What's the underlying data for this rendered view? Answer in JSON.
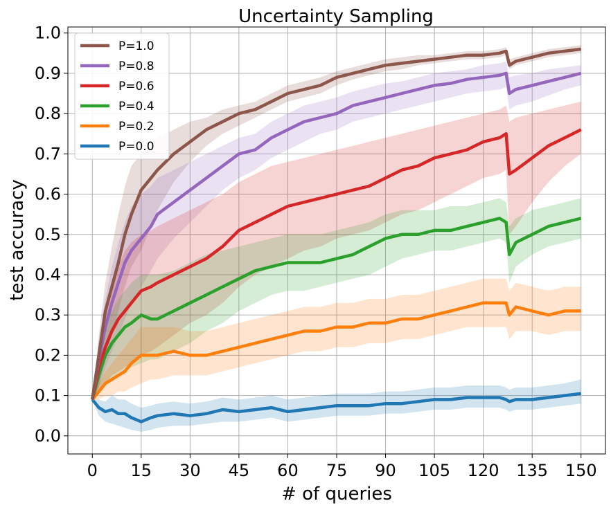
{
  "chart_data": {
    "type": "line",
    "title": "Uncertainty Sampling",
    "xlabel": "# of queries",
    "ylabel": "test accuracy",
    "xlim": [
      -7.5,
      157.5
    ],
    "ylim": [
      -0.045,
      1.015
    ],
    "xticks": [
      0,
      15,
      30,
      45,
      60,
      75,
      90,
      105,
      120,
      135,
      150
    ],
    "yticks": [
      0.0,
      0.1,
      0.2,
      0.3,
      0.4,
      0.5,
      0.6,
      0.7,
      0.8,
      0.9,
      1.0
    ],
    "ytick_labels": [
      "0.0",
      "0.1",
      "0.2",
      "0.3",
      "0.4",
      "0.5",
      "0.6",
      "0.7",
      "0.8",
      "0.9",
      "1.0"
    ],
    "grid": true,
    "legend_position": "top-left",
    "shaded_band": "uncertainty range around each series",
    "series": [
      {
        "name": "P=1.0",
        "color": "#8c564b",
        "x": [
          0,
          2,
          4,
          6,
          8,
          10,
          12,
          15,
          18,
          20,
          25,
          30,
          35,
          40,
          45,
          50,
          55,
          60,
          65,
          70,
          75,
          80,
          85,
          90,
          95,
          100,
          105,
          110,
          115,
          120,
          125,
          127,
          128,
          130,
          135,
          140,
          145,
          150
        ],
        "y": [
          0.09,
          0.2,
          0.31,
          0.37,
          0.43,
          0.5,
          0.55,
          0.61,
          0.64,
          0.66,
          0.7,
          0.73,
          0.76,
          0.78,
          0.8,
          0.81,
          0.83,
          0.85,
          0.86,
          0.87,
          0.89,
          0.9,
          0.91,
          0.92,
          0.925,
          0.93,
          0.935,
          0.94,
          0.945,
          0.945,
          0.95,
          0.955,
          0.92,
          0.93,
          0.94,
          0.95,
          0.955,
          0.96
        ],
        "band_lower": [
          0.09,
          0.12,
          0.2,
          0.25,
          0.31,
          0.37,
          0.42,
          0.46,
          0.52,
          0.56,
          0.63,
          0.68,
          0.72,
          0.75,
          0.77,
          0.79,
          0.81,
          0.83,
          0.84,
          0.85,
          0.87,
          0.885,
          0.895,
          0.905,
          0.91,
          0.92,
          0.925,
          0.93,
          0.935,
          0.935,
          0.94,
          0.945,
          0.91,
          0.92,
          0.93,
          0.94,
          0.945,
          0.95
        ],
        "band_upper": [
          0.09,
          0.25,
          0.38,
          0.47,
          0.55,
          0.62,
          0.67,
          0.7,
          0.72,
          0.74,
          0.76,
          0.78,
          0.79,
          0.81,
          0.82,
          0.83,
          0.85,
          0.87,
          0.88,
          0.89,
          0.905,
          0.915,
          0.925,
          0.935,
          0.94,
          0.945,
          0.945,
          0.95,
          0.955,
          0.955,
          0.96,
          0.965,
          0.935,
          0.94,
          0.95,
          0.96,
          0.965,
          0.97
        ]
      },
      {
        "name": "P=0.8",
        "color": "#9467bd",
        "x": [
          0,
          2,
          4,
          6,
          8,
          10,
          12,
          15,
          18,
          20,
          25,
          30,
          35,
          40,
          45,
          50,
          55,
          60,
          65,
          70,
          75,
          80,
          85,
          90,
          95,
          100,
          105,
          110,
          115,
          120,
          125,
          127,
          128,
          130,
          135,
          140,
          145,
          150
        ],
        "y": [
          0.09,
          0.19,
          0.27,
          0.33,
          0.38,
          0.43,
          0.46,
          0.49,
          0.52,
          0.55,
          0.58,
          0.61,
          0.64,
          0.67,
          0.7,
          0.71,
          0.74,
          0.76,
          0.78,
          0.79,
          0.8,
          0.82,
          0.83,
          0.84,
          0.85,
          0.86,
          0.87,
          0.875,
          0.885,
          0.89,
          0.895,
          0.9,
          0.85,
          0.86,
          0.87,
          0.88,
          0.89,
          0.9
        ],
        "band_lower": [
          0.09,
          0.12,
          0.17,
          0.21,
          0.25,
          0.29,
          0.33,
          0.37,
          0.41,
          0.44,
          0.49,
          0.53,
          0.57,
          0.61,
          0.64,
          0.66,
          0.69,
          0.71,
          0.73,
          0.75,
          0.76,
          0.78,
          0.79,
          0.8,
          0.81,
          0.82,
          0.83,
          0.84,
          0.85,
          0.855,
          0.86,
          0.865,
          0.81,
          0.82,
          0.83,
          0.845,
          0.86,
          0.87
        ],
        "band_upper": [
          0.09,
          0.24,
          0.34,
          0.42,
          0.48,
          0.53,
          0.57,
          0.6,
          0.62,
          0.64,
          0.66,
          0.68,
          0.7,
          0.72,
          0.74,
          0.75,
          0.78,
          0.8,
          0.82,
          0.83,
          0.84,
          0.855,
          0.865,
          0.875,
          0.88,
          0.89,
          0.9,
          0.905,
          0.91,
          0.92,
          0.925,
          0.93,
          0.89,
          0.895,
          0.9,
          0.91,
          0.915,
          0.92
        ]
      },
      {
        "name": "P=0.6",
        "color": "#d62728",
        "x": [
          0,
          2,
          4,
          6,
          8,
          10,
          12,
          15,
          18,
          20,
          25,
          30,
          35,
          40,
          45,
          50,
          55,
          60,
          65,
          70,
          75,
          80,
          85,
          90,
          95,
          100,
          105,
          110,
          115,
          120,
          125,
          127,
          128,
          130,
          135,
          140,
          145,
          150
        ],
        "y": [
          0.09,
          0.17,
          0.22,
          0.26,
          0.29,
          0.31,
          0.33,
          0.36,
          0.37,
          0.38,
          0.4,
          0.42,
          0.44,
          0.47,
          0.51,
          0.53,
          0.55,
          0.57,
          0.58,
          0.59,
          0.6,
          0.61,
          0.62,
          0.64,
          0.66,
          0.67,
          0.69,
          0.7,
          0.71,
          0.73,
          0.74,
          0.75,
          0.65,
          0.66,
          0.69,
          0.72,
          0.74,
          0.76
        ],
        "band_lower": [
          0.09,
          0.11,
          0.13,
          0.15,
          0.16,
          0.17,
          0.18,
          0.2,
          0.21,
          0.22,
          0.25,
          0.28,
          0.3,
          0.33,
          0.37,
          0.4,
          0.42,
          0.44,
          0.46,
          0.47,
          0.49,
          0.5,
          0.51,
          0.53,
          0.55,
          0.56,
          0.58,
          0.6,
          0.62,
          0.64,
          0.65,
          0.66,
          0.5,
          0.52,
          0.58,
          0.63,
          0.67,
          0.7
        ],
        "band_upper": [
          0.09,
          0.23,
          0.31,
          0.37,
          0.42,
          0.46,
          0.48,
          0.5,
          0.51,
          0.52,
          0.54,
          0.56,
          0.58,
          0.6,
          0.63,
          0.65,
          0.67,
          0.68,
          0.69,
          0.7,
          0.71,
          0.72,
          0.73,
          0.74,
          0.75,
          0.76,
          0.77,
          0.78,
          0.79,
          0.8,
          0.81,
          0.82,
          0.78,
          0.79,
          0.8,
          0.81,
          0.82,
          0.83
        ]
      },
      {
        "name": "P=0.4",
        "color": "#2ca02c",
        "x": [
          0,
          2,
          4,
          6,
          8,
          10,
          12,
          15,
          18,
          20,
          25,
          30,
          35,
          40,
          45,
          50,
          55,
          60,
          65,
          70,
          75,
          80,
          85,
          90,
          95,
          100,
          105,
          110,
          115,
          120,
          125,
          127,
          128,
          130,
          135,
          140,
          145,
          150
        ],
        "y": [
          0.09,
          0.15,
          0.2,
          0.23,
          0.25,
          0.27,
          0.28,
          0.3,
          0.29,
          0.29,
          0.31,
          0.33,
          0.35,
          0.37,
          0.39,
          0.41,
          0.42,
          0.43,
          0.43,
          0.43,
          0.44,
          0.45,
          0.47,
          0.49,
          0.5,
          0.5,
          0.51,
          0.51,
          0.52,
          0.53,
          0.54,
          0.53,
          0.45,
          0.48,
          0.5,
          0.52,
          0.53,
          0.54
        ],
        "band_lower": [
          0.09,
          0.11,
          0.13,
          0.14,
          0.15,
          0.16,
          0.17,
          0.18,
          0.19,
          0.19,
          0.21,
          0.23,
          0.26,
          0.28,
          0.31,
          0.33,
          0.35,
          0.36,
          0.36,
          0.37,
          0.38,
          0.39,
          0.4,
          0.42,
          0.44,
          0.45,
          0.46,
          0.46,
          0.47,
          0.48,
          0.49,
          0.48,
          0.38,
          0.42,
          0.45,
          0.47,
          0.48,
          0.49
        ],
        "band_upper": [
          0.09,
          0.2,
          0.27,
          0.31,
          0.34,
          0.36,
          0.38,
          0.4,
          0.4,
          0.4,
          0.41,
          0.43,
          0.45,
          0.46,
          0.47,
          0.48,
          0.49,
          0.5,
          0.5,
          0.5,
          0.51,
          0.52,
          0.53,
          0.55,
          0.56,
          0.56,
          0.56,
          0.57,
          0.57,
          0.58,
          0.59,
          0.58,
          0.52,
          0.54,
          0.56,
          0.57,
          0.58,
          0.59
        ]
      },
      {
        "name": "P=0.2",
        "color": "#ff7f0e",
        "x": [
          0,
          2,
          4,
          6,
          8,
          10,
          12,
          15,
          18,
          20,
          25,
          30,
          35,
          40,
          45,
          50,
          55,
          60,
          65,
          70,
          75,
          80,
          85,
          90,
          95,
          100,
          105,
          110,
          115,
          120,
          125,
          127,
          128,
          130,
          135,
          140,
          145,
          150
        ],
        "y": [
          0.09,
          0.11,
          0.13,
          0.14,
          0.15,
          0.16,
          0.18,
          0.2,
          0.2,
          0.2,
          0.21,
          0.2,
          0.2,
          0.21,
          0.22,
          0.23,
          0.24,
          0.25,
          0.26,
          0.26,
          0.27,
          0.27,
          0.28,
          0.28,
          0.29,
          0.29,
          0.3,
          0.31,
          0.32,
          0.33,
          0.33,
          0.33,
          0.3,
          0.32,
          0.31,
          0.3,
          0.31,
          0.31
        ],
        "band_lower": [
          0.09,
          0.09,
          0.1,
          0.1,
          0.11,
          0.11,
          0.12,
          0.13,
          0.14,
          0.14,
          0.15,
          0.15,
          0.15,
          0.16,
          0.17,
          0.18,
          0.19,
          0.2,
          0.21,
          0.21,
          0.22,
          0.22,
          0.23,
          0.23,
          0.24,
          0.24,
          0.25,
          0.26,
          0.27,
          0.27,
          0.27,
          0.27,
          0.24,
          0.26,
          0.26,
          0.25,
          0.26,
          0.26
        ],
        "band_upper": [
          0.09,
          0.13,
          0.16,
          0.18,
          0.2,
          0.22,
          0.24,
          0.27,
          0.27,
          0.27,
          0.27,
          0.26,
          0.26,
          0.27,
          0.28,
          0.29,
          0.3,
          0.31,
          0.32,
          0.32,
          0.33,
          0.33,
          0.34,
          0.34,
          0.35,
          0.35,
          0.36,
          0.37,
          0.38,
          0.39,
          0.39,
          0.39,
          0.36,
          0.38,
          0.37,
          0.36,
          0.37,
          0.37
        ]
      },
      {
        "name": "P=0.0",
        "color": "#1f77b4",
        "x": [
          0,
          2,
          4,
          6,
          8,
          10,
          12,
          15,
          18,
          20,
          25,
          30,
          35,
          40,
          45,
          50,
          55,
          60,
          65,
          70,
          75,
          80,
          85,
          90,
          95,
          100,
          105,
          110,
          115,
          120,
          125,
          127,
          128,
          130,
          135,
          140,
          145,
          150
        ],
        "y": [
          0.09,
          0.07,
          0.06,
          0.065,
          0.055,
          0.055,
          0.045,
          0.035,
          0.045,
          0.05,
          0.055,
          0.05,
          0.055,
          0.065,
          0.06,
          0.065,
          0.07,
          0.06,
          0.065,
          0.07,
          0.075,
          0.075,
          0.075,
          0.08,
          0.08,
          0.085,
          0.09,
          0.09,
          0.095,
          0.095,
          0.095,
          0.09,
          0.085,
          0.09,
          0.09,
          0.095,
          0.1,
          0.105
        ],
        "band_lower": [
          0.09,
          0.05,
          0.035,
          0.03,
          0.025,
          0.02,
          0.015,
          0.01,
          0.015,
          0.02,
          0.025,
          0.025,
          0.03,
          0.035,
          0.035,
          0.04,
          0.045,
          0.035,
          0.04,
          0.045,
          0.05,
          0.05,
          0.05,
          0.055,
          0.055,
          0.06,
          0.065,
          0.065,
          0.07,
          0.07,
          0.07,
          0.065,
          0.06,
          0.065,
          0.065,
          0.07,
          0.075,
          0.08
        ],
        "band_upper": [
          0.09,
          0.09,
          0.085,
          0.1,
          0.09,
          0.09,
          0.08,
          0.07,
          0.075,
          0.08,
          0.085,
          0.08,
          0.085,
          0.095,
          0.09,
          0.095,
          0.1,
          0.09,
          0.095,
          0.1,
          0.105,
          0.105,
          0.105,
          0.11,
          0.11,
          0.115,
          0.12,
          0.12,
          0.125,
          0.125,
          0.125,
          0.12,
          0.115,
          0.12,
          0.12,
          0.125,
          0.13,
          0.14
        ]
      }
    ]
  }
}
